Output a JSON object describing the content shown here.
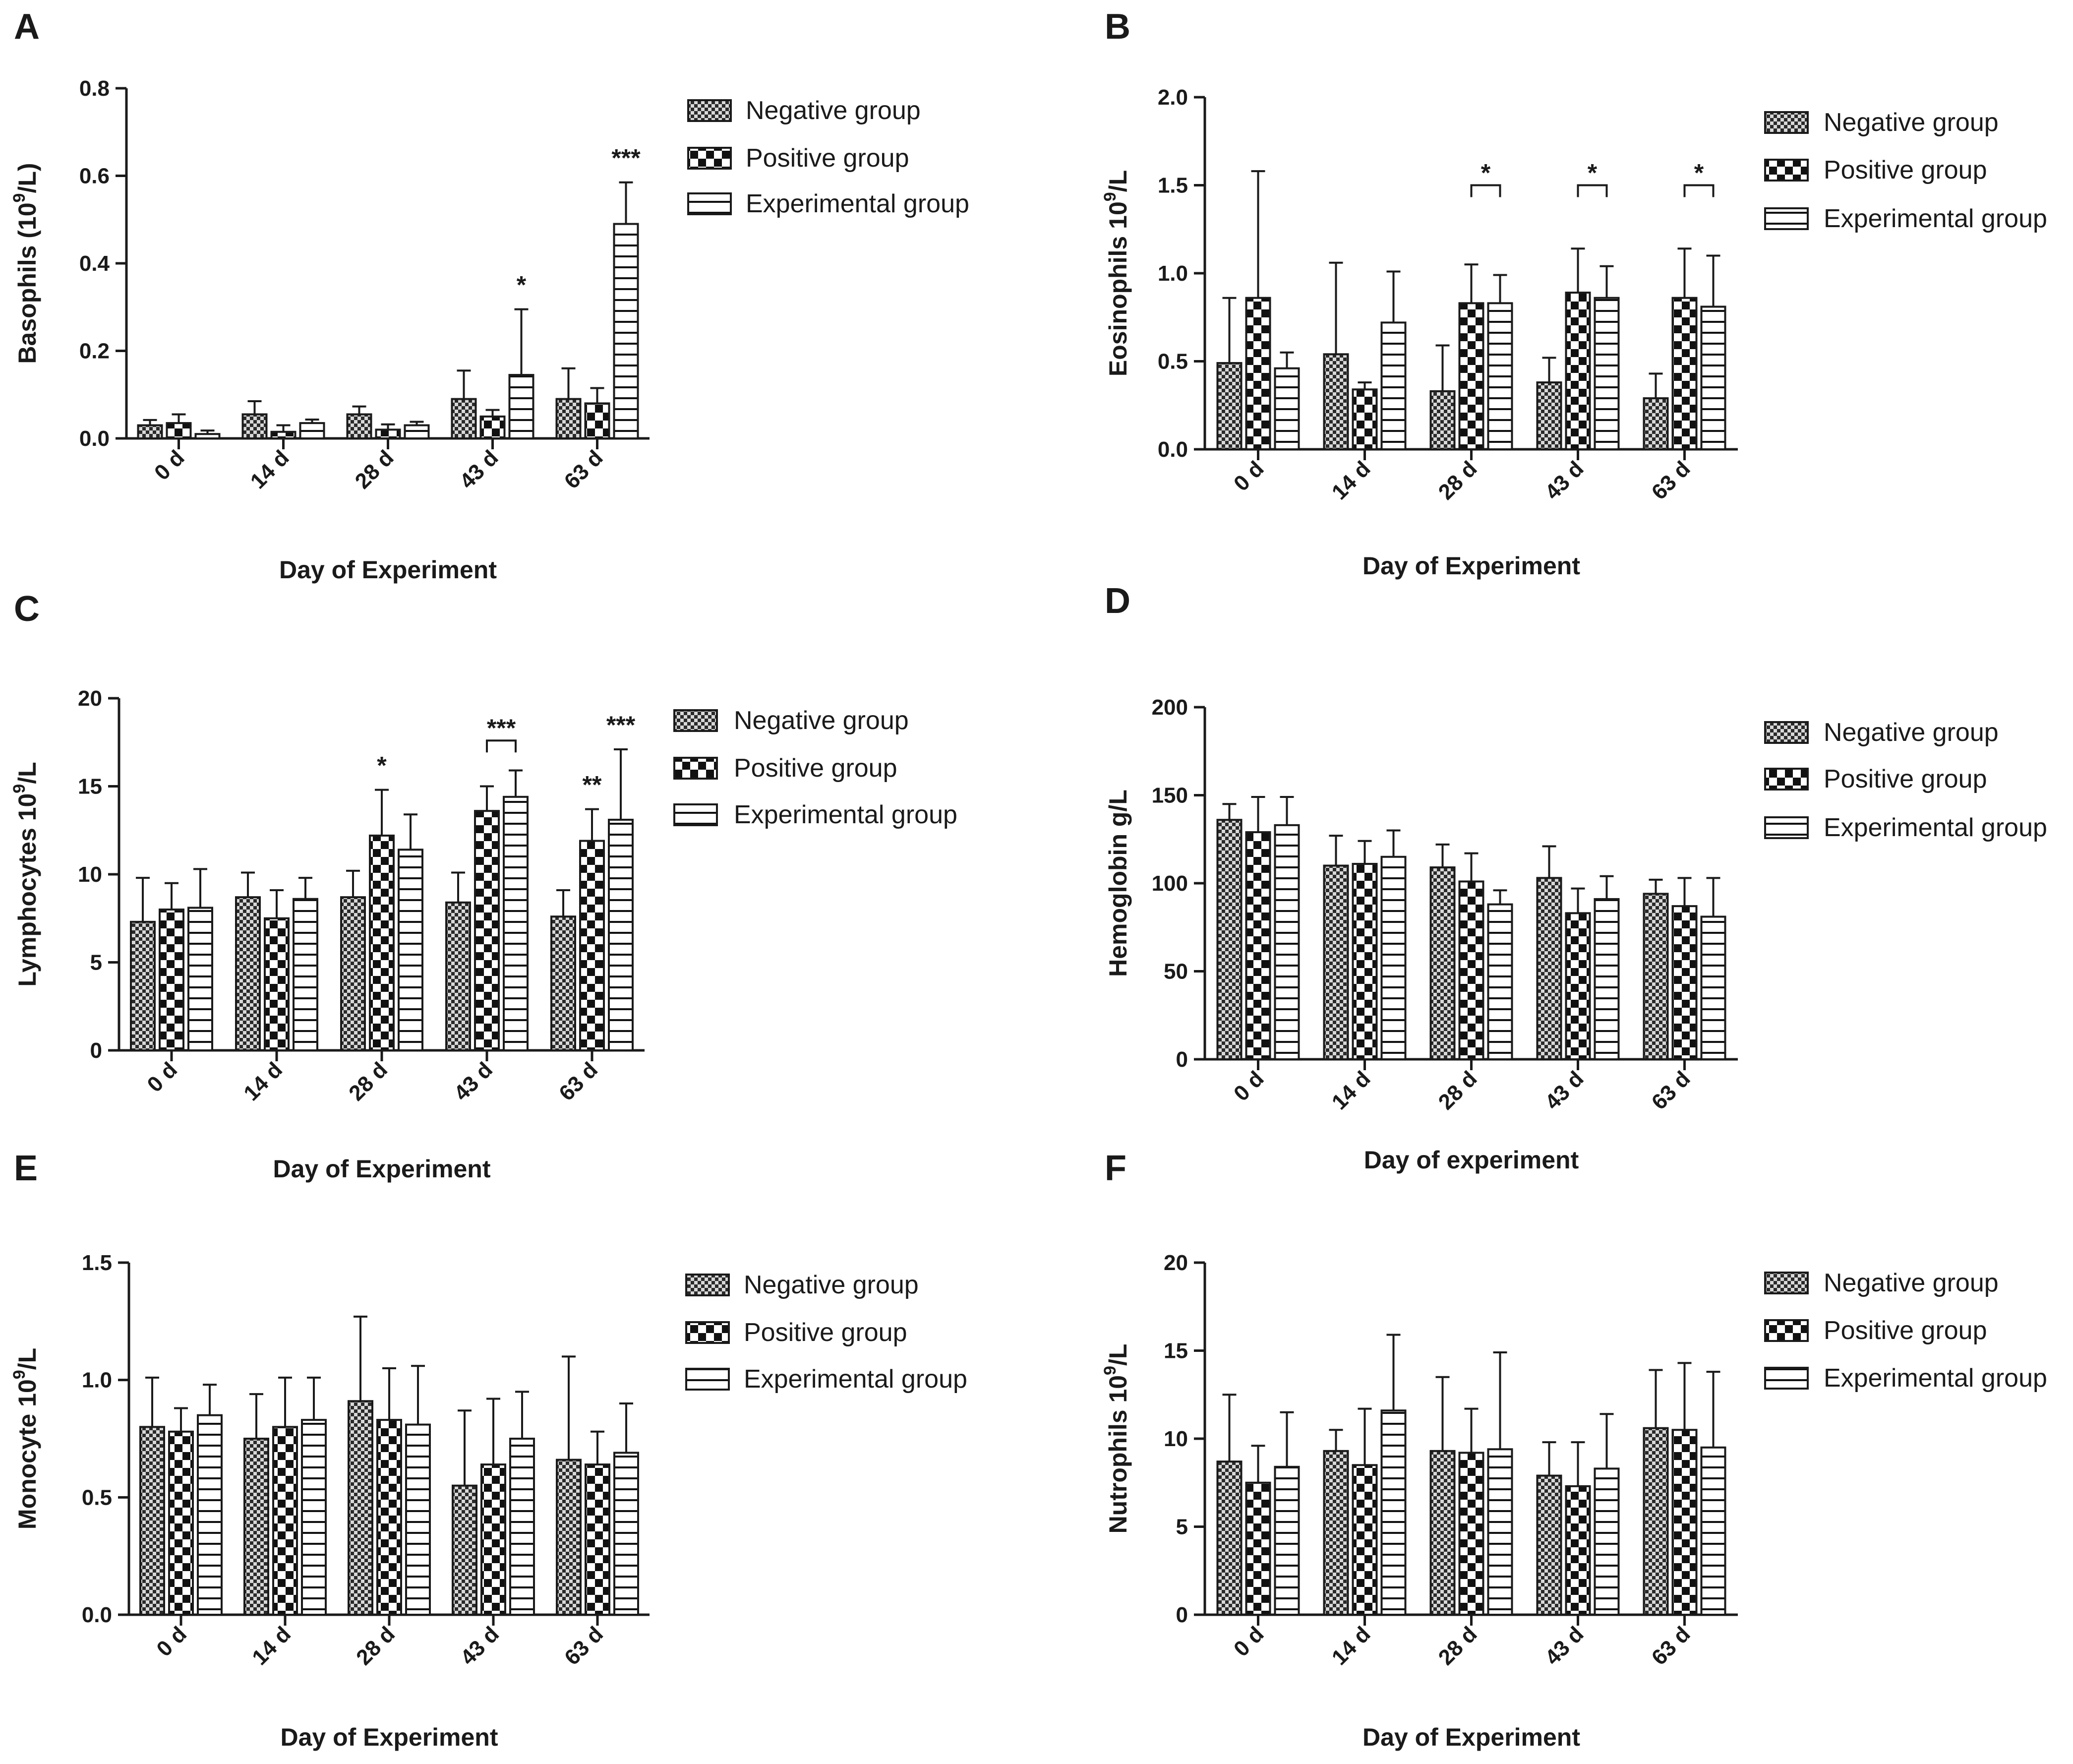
{
  "chart_data": [
    {
      "panel": "A",
      "type": "bar",
      "title": "",
      "xlabel": "Day of Experiment",
      "ylabel": "Basophils (10^9/L)",
      "ylabel_parts": {
        "pre": "Basophils (10",
        "sup": "9",
        "post": "/L)"
      },
      "ylim": [
        0,
        0.8
      ],
      "yticks": [
        "0.0",
        "0.2",
        "0.4",
        "0.6",
        "0.8"
      ],
      "categories": [
        "0 d",
        "14 d",
        "28 d",
        "43 d",
        "63 d"
      ],
      "series": [
        {
          "name": "Negative group",
          "values": [
            0.03,
            0.055,
            0.055,
            0.09,
            0.09
          ],
          "errors": [
            0.012,
            0.03,
            0.018,
            0.065,
            0.07
          ]
        },
        {
          "name": "Positive group",
          "values": [
            0.035,
            0.015,
            0.02,
            0.05,
            0.08
          ],
          "errors": [
            0.02,
            0.015,
            0.012,
            0.015,
            0.035
          ]
        },
        {
          "name": "Experimental group",
          "values": [
            0.01,
            0.035,
            0.03,
            0.145,
            0.49
          ],
          "errors": [
            0.008,
            0.008,
            0.008,
            0.15,
            0.095
          ]
        }
      ],
      "annotations": [
        {
          "text": "*",
          "category": 3,
          "series": 2,
          "bracket": false
        },
        {
          "text": "***",
          "category": 4,
          "series": 2,
          "bracket": false
        }
      ]
    },
    {
      "panel": "B",
      "type": "bar",
      "title": "",
      "xlabel": "Day of Experiment",
      "ylabel": "Eosinophils 10^9/L",
      "ylabel_parts": {
        "pre": "Eosinophils 10",
        "sup": "9",
        "post": "/L"
      },
      "ylim": [
        0,
        2.0
      ],
      "yticks": [
        "0.0",
        "0.5",
        "1.0",
        "1.5",
        "2.0"
      ],
      "categories": [
        "0 d",
        "14 d",
        "28 d",
        "43 d",
        "63 d"
      ],
      "series": [
        {
          "name": "Negative group",
          "values": [
            0.49,
            0.54,
            0.33,
            0.38,
            0.29
          ],
          "errors": [
            0.37,
            0.52,
            0.26,
            0.14,
            0.14
          ]
        },
        {
          "name": "Positive group",
          "values": [
            0.86,
            0.34,
            0.83,
            0.89,
            0.86
          ],
          "errors": [
            0.72,
            0.04,
            0.22,
            0.25,
            0.28
          ]
        },
        {
          "name": "Experimental group",
          "values": [
            0.46,
            0.72,
            0.83,
            0.86,
            0.81
          ],
          "errors": [
            0.09,
            0.29,
            0.16,
            0.18,
            0.29
          ]
        }
      ],
      "annotations": [
        {
          "text": "*",
          "category": 2,
          "series": 1,
          "bracket": true,
          "y": 1.5
        },
        {
          "text": "*",
          "category": 3,
          "series": 1,
          "bracket": true,
          "y": 1.5
        },
        {
          "text": "*",
          "category": 4,
          "series": 1,
          "bracket": true,
          "y": 1.5
        }
      ]
    },
    {
      "panel": "C",
      "type": "bar",
      "title": "",
      "xlabel": "Day of Experiment",
      "ylabel": "Lymphocytes 10^9/L",
      "ylabel_parts": {
        "pre": "Lymphocytes 10",
        "sup": "9",
        "post": "/L"
      },
      "ylim": [
        0,
        20
      ],
      "yticks": [
        "0",
        "5",
        "10",
        "15",
        "20"
      ],
      "categories": [
        "0 d",
        "14 d",
        "28 d",
        "43 d",
        "63 d"
      ],
      "series": [
        {
          "name": "Negative group",
          "values": [
            7.3,
            8.7,
            8.7,
            8.4,
            7.6
          ],
          "errors": [
            2.5,
            1.4,
            1.5,
            1.7,
            1.5
          ]
        },
        {
          "name": "Positive group",
          "values": [
            8.0,
            7.5,
            12.2,
            13.6,
            11.9
          ],
          "errors": [
            1.5,
            1.6,
            2.6,
            1.4,
            1.8
          ]
        },
        {
          "name": "Experimental group",
          "values": [
            8.1,
            8.6,
            11.4,
            14.4,
            13.1
          ],
          "errors": [
            2.2,
            1.2,
            2.0,
            1.5,
            4.0
          ]
        }
      ],
      "annotations": [
        {
          "text": "*",
          "category": 2,
          "series": 1,
          "bracket": false
        },
        {
          "text": "***",
          "category": 3,
          "series": 1,
          "bracket": true,
          "y": 17.6
        },
        {
          "text": "**",
          "category": 4,
          "series": 1,
          "bracket": false
        },
        {
          "text": "***",
          "category": 4,
          "series": 2,
          "bracket": false
        }
      ]
    },
    {
      "panel": "D",
      "type": "bar",
      "title": "",
      "xlabel": "Day of experiment",
      "ylabel": "Hemoglobin g/L",
      "ylabel_parts": {
        "pre": "Hemoglobin g/L",
        "sup": "",
        "post": ""
      },
      "ylim": [
        0,
        200
      ],
      "yticks": [
        "0",
        "50",
        "100",
        "150",
        "200"
      ],
      "categories": [
        "0 d",
        "14 d",
        "28 d",
        "43 d",
        "63 d"
      ],
      "series": [
        {
          "name": "Negative group",
          "values": [
            136,
            110,
            109,
            103,
            94
          ],
          "errors": [
            9,
            17,
            13,
            18,
            8
          ]
        },
        {
          "name": "Positive group",
          "values": [
            129,
            111,
            101,
            83,
            87
          ],
          "errors": [
            20,
            13,
            16,
            14,
            16
          ]
        },
        {
          "name": "Experimental group",
          "values": [
            133,
            115,
            88,
            91,
            81
          ],
          "errors": [
            16,
            15,
            8,
            13,
            22
          ]
        }
      ],
      "annotations": []
    },
    {
      "panel": "E",
      "type": "bar",
      "title": "",
      "xlabel": "Day of Experiment",
      "ylabel": "Monocyte 10^9/L",
      "ylabel_parts": {
        "pre": "Monocyte 10",
        "sup": "9",
        "post": "/L"
      },
      "ylim": [
        0,
        1.5
      ],
      "yticks": [
        "0.0",
        "0.5",
        "1.0",
        "1.5"
      ],
      "categories": [
        "0 d",
        "14 d",
        "28 d",
        "43 d",
        "63 d"
      ],
      "series": [
        {
          "name": "Negative group",
          "values": [
            0.8,
            0.75,
            0.91,
            0.55,
            0.66
          ],
          "errors": [
            0.21,
            0.19,
            0.36,
            0.32,
            0.44
          ]
        },
        {
          "name": "Positive group",
          "values": [
            0.78,
            0.8,
            0.83,
            0.64,
            0.64
          ],
          "errors": [
            0.1,
            0.21,
            0.22,
            0.28,
            0.14
          ]
        },
        {
          "name": "Experimental group",
          "values": [
            0.85,
            0.83,
            0.81,
            0.75,
            0.69
          ],
          "errors": [
            0.13,
            0.18,
            0.25,
            0.2,
            0.21
          ]
        }
      ],
      "annotations": []
    },
    {
      "panel": "F",
      "type": "bar",
      "title": "",
      "xlabel": "Day of Experiment",
      "ylabel": "Nutrophils 10^9/L",
      "ylabel_parts": {
        "pre": "Nutrophils 10",
        "sup": "9",
        "post": "/L"
      },
      "ylim": [
        0,
        20
      ],
      "yticks": [
        "0",
        "5",
        "10",
        "15",
        "20"
      ],
      "categories": [
        "0 d",
        "14 d",
        "28 d",
        "43 d",
        "63 d"
      ],
      "series": [
        {
          "name": "Negative group",
          "values": [
            8.7,
            9.3,
            9.3,
            7.9,
            10.6
          ],
          "errors": [
            3.8,
            1.2,
            4.2,
            1.9,
            3.3
          ]
        },
        {
          "name": "Positive group",
          "values": [
            7.5,
            8.5,
            9.2,
            7.3,
            10.5
          ],
          "errors": [
            2.1,
            3.2,
            2.5,
            2.5,
            3.8
          ]
        },
        {
          "name": "Experimental group",
          "values": [
            8.4,
            11.6,
            9.4,
            8.3,
            9.5
          ],
          "errors": [
            3.1,
            4.3,
            5.5,
            3.1,
            4.3
          ]
        }
      ],
      "annotations": []
    }
  ],
  "colors": {
    "ink": "#1a1a1a",
    "background": "#ffffff"
  }
}
